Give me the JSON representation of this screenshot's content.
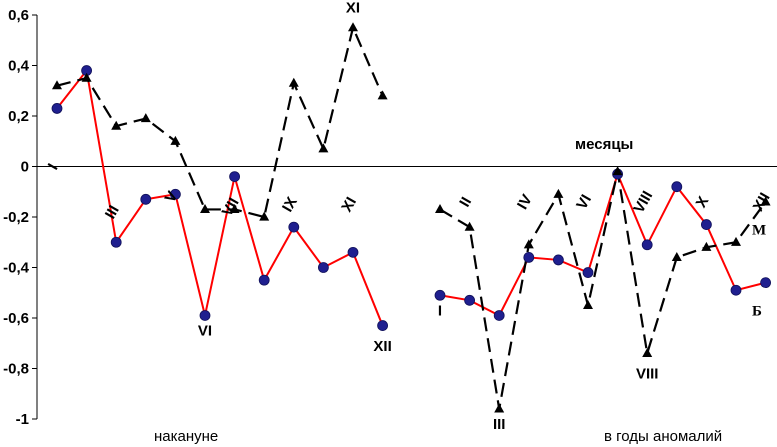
{
  "chart_data": {
    "type": "line",
    "ylim": [
      -1,
      0.6
    ],
    "yticks": [
      -1,
      -0.8,
      -0.6,
      -0.4,
      -0.2,
      0,
      0.2,
      0.4,
      0.6
    ],
    "ytick_labels": [
      "-1",
      "-0,8",
      "-0,6",
      "-0,4",
      "-0,2",
      "0",
      "0,2",
      "0,4",
      "0,6"
    ],
    "axis_title": "месяцы",
    "group_labels": [
      "накануне",
      "в годы аномалий"
    ],
    "series": [
      {
        "name": "Б",
        "color": "#ff0000",
        "marker": "circle",
        "style": "solid",
        "groups": [
          [
            0.23,
            0.38,
            -0.3,
            -0.13,
            -0.11,
            -0.59,
            -0.04,
            -0.45,
            -0.24,
            -0.4,
            -0.34,
            -0.63
          ],
          [
            -0.51,
            -0.53,
            -0.59,
            -0.36,
            -0.37,
            -0.42,
            -0.03,
            -0.31,
            -0.08,
            -0.23,
            -0.49,
            -0.46
          ]
        ]
      },
      {
        "name": "М",
        "color": "#000000",
        "marker": "triangle",
        "style": "dashed",
        "groups": [
          [
            0.32,
            0.35,
            0.16,
            0.19,
            0.1,
            -0.17,
            -0.17,
            -0.2,
            0.33,
            0.07,
            0.55,
            0.28
          ],
          [
            -0.17,
            -0.24,
            -0.96,
            -0.31,
            -0.11,
            -0.55,
            -0.02,
            -0.74,
            -0.36,
            -0.32,
            -0.3,
            -0.14
          ]
        ]
      }
    ],
    "labels": [
      {
        "text": "I",
        "group": 0,
        "pos": 0,
        "value": -0.01,
        "rotate": -60
      },
      {
        "text": "III",
        "group": 0,
        "pos": 2,
        "value": -0.19,
        "rotate": -60
      },
      {
        "text": "V",
        "group": 0,
        "pos": 4,
        "value": -0.13,
        "rotate": -60
      },
      {
        "text": "VII",
        "group": 0,
        "pos": 6,
        "value": -0.17,
        "rotate": -60
      },
      {
        "text": "IX",
        "group": 0,
        "pos": 8,
        "value": -0.16,
        "rotate": -60
      },
      {
        "text": "XI",
        "group": 0,
        "pos": 10,
        "value": -0.16,
        "rotate": -60
      },
      {
        "text": "VI",
        "group": 0,
        "pos": 5,
        "value": -0.67,
        "rotate": 0
      },
      {
        "text": "XII",
        "group": 0,
        "pos": 11,
        "value": -0.73,
        "rotate": 0
      },
      {
        "text": "XI",
        "group": 0,
        "pos": 10,
        "value": 0.61,
        "rotate": 0
      },
      {
        "text": "II",
        "group": 1,
        "pos": 1,
        "value": -0.15,
        "rotate": -60
      },
      {
        "text": "IV",
        "group": 1,
        "pos": 3,
        "value": -0.15,
        "rotate": -60
      },
      {
        "text": "VI",
        "group": 1,
        "pos": 5,
        "value": -0.15,
        "rotate": -60
      },
      {
        "text": "VIII",
        "group": 1,
        "pos": 7,
        "value": -0.15,
        "rotate": -60
      },
      {
        "text": "X",
        "group": 1,
        "pos": 9,
        "value": -0.15,
        "rotate": -60
      },
      {
        "text": "XII",
        "group": 1,
        "pos": 11,
        "value": -0.15,
        "rotate": -60
      },
      {
        "text": "I",
        "group": 1,
        "pos": 0,
        "value": -0.59,
        "rotate": 0
      },
      {
        "text": "III",
        "group": 1,
        "pos": 2,
        "value": -1.04,
        "rotate": 0
      },
      {
        "text": "VIII",
        "group": 1,
        "pos": 7,
        "value": -0.84,
        "rotate": 0
      }
    ],
    "series_end_labels": [
      {
        "text": "М",
        "series": 1,
        "value": -0.25
      },
      {
        "text": "Б",
        "series": 0,
        "value": -0.57
      }
    ]
  }
}
